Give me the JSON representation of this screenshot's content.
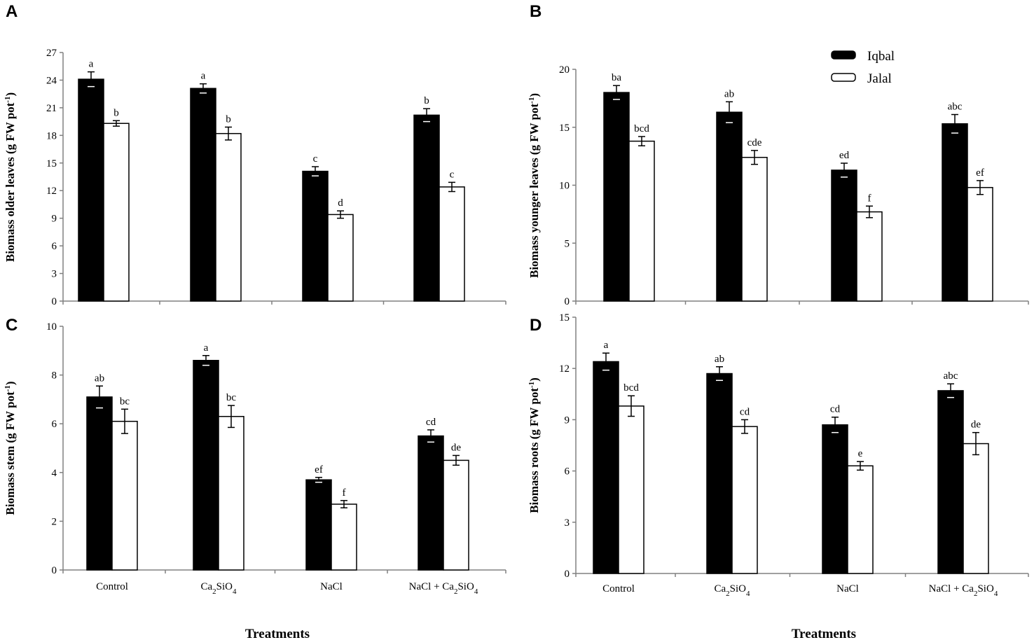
{
  "figure": {
    "treatments_label": "Treatments",
    "legend": {
      "iqbal": "Iqbal",
      "jalal": "Jalal"
    },
    "colors": {
      "iqbal": "#000000",
      "jalal": "#ffffff",
      "axis": "#808080"
    }
  },
  "chart_data": [
    {
      "panel": "A",
      "type": "bar",
      "ylabel": "Biomass older leaves (g FW pot",
      "ylabel_sup": "-1",
      "ylabel_close": ")",
      "ylim": [
        0,
        27
      ],
      "yticks": [
        0,
        3,
        6,
        9,
        12,
        15,
        18,
        21,
        24,
        27
      ],
      "categories": [
        "Control",
        "Ca2SiO4",
        "NaCl",
        "NaCl + Ca2SiO4"
      ],
      "series": [
        {
          "name": "Iqbal",
          "values": [
            24.1,
            23.1,
            14.1,
            20.2
          ],
          "errors": [
            0.8,
            0.5,
            0.5,
            0.7
          ],
          "labels": [
            "a",
            "a",
            "c",
            "b"
          ]
        },
        {
          "name": "Jalal",
          "values": [
            19.3,
            18.2,
            9.4,
            12.4
          ],
          "errors": [
            0.3,
            0.7,
            0.4,
            0.5
          ],
          "labels": [
            "b",
            "b",
            "d",
            "c"
          ]
        }
      ],
      "xlabel": ""
    },
    {
      "panel": "B",
      "type": "bar",
      "ylabel": "Biomass younger leaves (g FW pot",
      "ylabel_sup": "-1",
      "ylabel_close": ")",
      "ylim": [
        0,
        20
      ],
      "yticks": [
        0,
        5,
        10,
        15,
        20
      ],
      "categories": [
        "Control",
        "Ca2SiO4",
        "NaCl",
        "NaCl + Ca2SiO4"
      ],
      "series": [
        {
          "name": "Iqbal",
          "values": [
            18.0,
            16.3,
            11.3,
            15.3
          ],
          "errors": [
            0.6,
            0.9,
            0.6,
            0.8
          ],
          "labels": [
            "ba",
            "ab",
            "ed",
            "abc"
          ]
        },
        {
          "name": "Jalal",
          "values": [
            13.8,
            12.4,
            7.7,
            9.8
          ],
          "errors": [
            0.4,
            0.6,
            0.5,
            0.6
          ],
          "labels": [
            "bcd",
            "cde",
            "f",
            "ef"
          ]
        }
      ],
      "xlabel": ""
    },
    {
      "panel": "C",
      "type": "bar",
      "ylabel": "Biomass stem (g FW pot",
      "ylabel_sup": "-1",
      "ylabel_close": ")",
      "ylim": [
        0,
        10
      ],
      "yticks": [
        0,
        2,
        4,
        6,
        8,
        10
      ],
      "categories": [
        "Control",
        "Ca2SiO4",
        "NaCl",
        "NaCl + Ca2SiO4"
      ],
      "series": [
        {
          "name": "Iqbal",
          "values": [
            7.1,
            8.6,
            3.7,
            5.5
          ],
          "errors": [
            0.45,
            0.2,
            0.1,
            0.25
          ],
          "labels": [
            "ab",
            "a",
            "ef",
            "cd"
          ]
        },
        {
          "name": "Jalal",
          "values": [
            6.1,
            6.3,
            2.7,
            4.5
          ],
          "errors": [
            0.5,
            0.45,
            0.15,
            0.2
          ],
          "labels": [
            "bc",
            "bc",
            "f",
            "de"
          ]
        }
      ],
      "xlabel": "Treatments"
    },
    {
      "panel": "D",
      "type": "bar",
      "ylabel": "Biomass  roots (g FW pot",
      "ylabel_sup": "-1",
      "ylabel_close": ")",
      "ylim": [
        0,
        15
      ],
      "yticks": [
        0,
        3,
        6,
        9,
        12,
        15
      ],
      "categories": [
        "Control",
        "Ca2SiO4",
        "NaCl",
        "NaCl + Ca2SiO4"
      ],
      "series": [
        {
          "name": "Iqbal",
          "values": [
            12.4,
            11.7,
            8.7,
            10.7
          ],
          "errors": [
            0.5,
            0.4,
            0.45,
            0.4
          ],
          "labels": [
            "a",
            "ab",
            "cd",
            "abc"
          ]
        },
        {
          "name": "Jalal",
          "values": [
            9.8,
            8.6,
            6.3,
            7.6
          ],
          "errors": [
            0.6,
            0.4,
            0.25,
            0.65
          ],
          "labels": [
            "bcd",
            "cd",
            "e",
            "de"
          ]
        }
      ],
      "xlabel": "Treatments"
    }
  ]
}
